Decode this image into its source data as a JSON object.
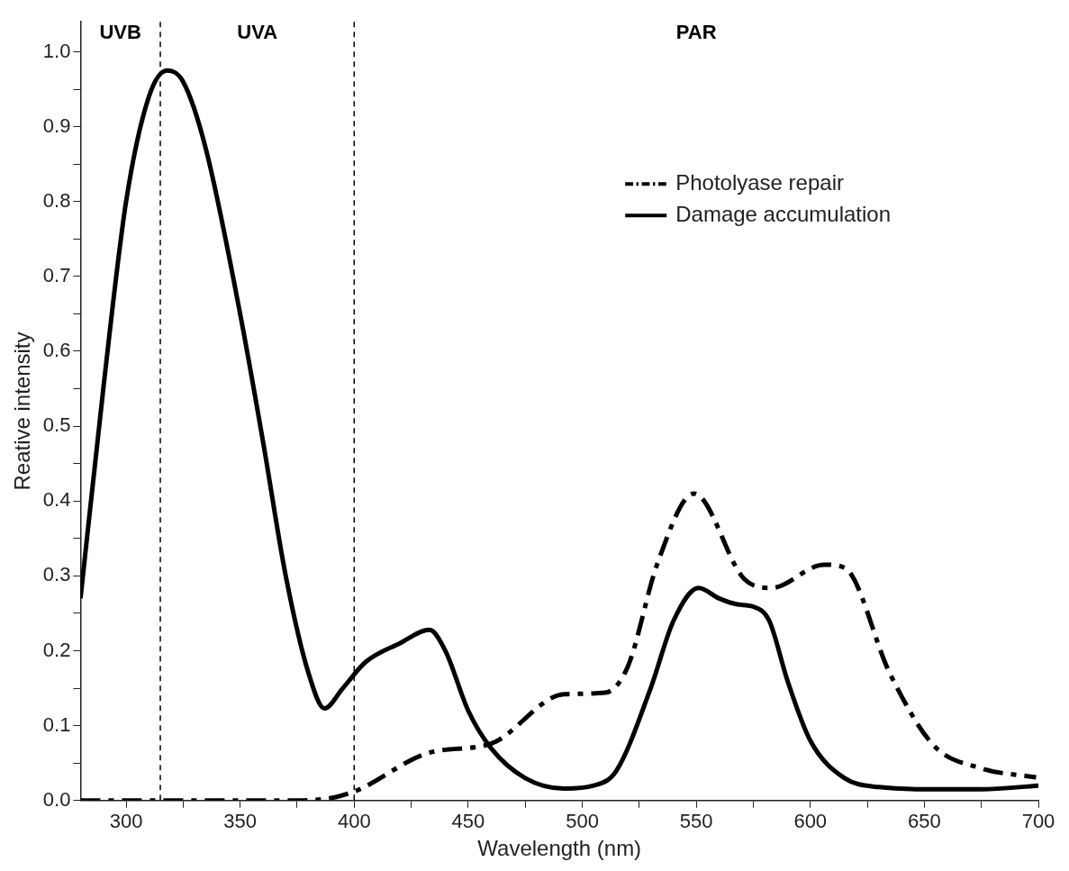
{
  "chart_data": {
    "type": "line",
    "xlabel": "Wavelength (nm)",
    "ylabel": "Reative intensity",
    "xlim": [
      280,
      700
    ],
    "xticks": [
      300,
      {
        "value": 325,
        "label": null
      },
      350,
      {
        "value": 375,
        "label": null
      },
      400,
      {
        "value": 425,
        "label": null
      },
      450,
      {
        "value": 475,
        "label": null
      },
      500,
      {
        "value": 525,
        "label": null
      },
      550,
      {
        "value": 575,
        "label": null
      },
      600,
      {
        "value": 625,
        "label": null
      },
      650,
      {
        "value": 675,
        "label": null
      },
      700
    ],
    "ylim": [
      0,
      1.04
    ],
    "yticks": [
      {
        "value": 0,
        "label": "0.0"
      },
      {
        "value": 0.05,
        "label": null
      },
      {
        "value": 0.1,
        "label": "0.1"
      },
      {
        "value": 0.15,
        "label": null
      },
      {
        "value": 0.2,
        "label": "0.2"
      },
      {
        "value": 0.25,
        "label": null
      },
      {
        "value": 0.3,
        "label": "0.3"
      },
      {
        "value": 0.35,
        "label": null
      },
      {
        "value": 0.4,
        "label": "0.4"
      },
      {
        "value": 0.45,
        "label": null
      },
      {
        "value": 0.5,
        "label": "0.5"
      },
      {
        "value": 0.55,
        "label": null
      },
      {
        "value": 0.6,
        "label": "0.6"
      },
      {
        "value": 0.65,
        "label": null
      },
      {
        "value": 0.7,
        "label": "0.7"
      },
      {
        "value": 0.75,
        "label": null
      },
      {
        "value": 0.8,
        "label": "0.8"
      },
      {
        "value": 0.85,
        "label": null
      },
      {
        "value": 0.9,
        "label": "0.9"
      },
      {
        "value": 0.95,
        "label": null
      },
      {
        "value": 1.0,
        "label": "1.0"
      }
    ],
    "grid": false,
    "legend": "top right",
    "marker": "none",
    "ref_lines": [
      {
        "axis": "x",
        "value": 315,
        "line_style": "dashed",
        "color": "#000000"
      },
      {
        "axis": "x",
        "value": 400,
        "line_style": "dashed",
        "color": "#000000"
      }
    ],
    "annotations": [
      "UVB",
      "UVA",
      "PAR"
    ],
    "series": [
      {
        "name": "Photolyase repair",
        "color": "#000000",
        "line_style": "dashdot",
        "x": [
          280,
          300,
          340,
          370,
          387,
          400,
          433,
          460,
          492,
          510,
          520,
          533,
          549,
          571,
          583,
          606,
          615,
          635,
          654,
          675,
          699
        ],
        "values": [
          0,
          0,
          0,
          0,
          0.002,
          0.012,
          0.064,
          0.076,
          0.142,
          0.144,
          0.179,
          0.317,
          0.41,
          0.296,
          0.284,
          0.315,
          0.311,
          0.169,
          0.074,
          0.043,
          0.031
        ]
      },
      {
        "name": "Damage accumulation",
        "color": "#000000",
        "line_style": "solid",
        "x": [
          280,
          290,
          300,
          310,
          318,
          325,
          335,
          350,
          360,
          370,
          380,
          387,
          395,
          405,
          420,
          433,
          440,
          450,
          460,
          475,
          492,
          505,
          515,
          530,
          540,
          551,
          560,
          568,
          575,
          582,
          590,
          600,
          615,
          630,
          654,
          675,
          700
        ],
        "values": [
          0.27,
          0.55,
          0.8,
          0.94,
          0.975,
          0.96,
          0.87,
          0.65,
          0.48,
          0.3,
          0.17,
          0.123,
          0.15,
          0.185,
          0.21,
          0.228,
          0.2,
          0.12,
          0.07,
          0.03,
          0.016,
          0.02,
          0.04,
          0.15,
          0.24,
          0.284,
          0.27,
          0.262,
          0.259,
          0.24,
          0.16,
          0.08,
          0.03,
          0.018,
          0.015,
          0.015,
          0.02
        ]
      }
    ]
  }
}
